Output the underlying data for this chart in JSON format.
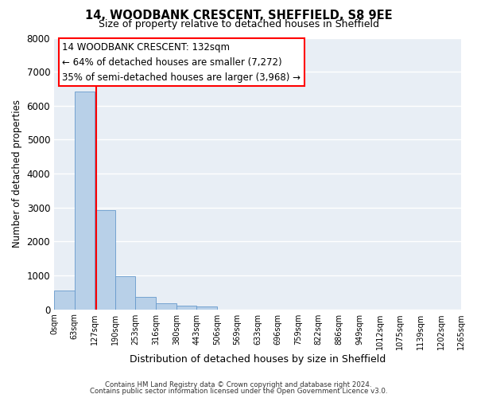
{
  "title": "14, WOODBANK CRESCENT, SHEFFIELD, S8 9EE",
  "subtitle": "Size of property relative to detached houses in Sheffield",
  "xlabel": "Distribution of detached houses by size in Sheffield",
  "ylabel": "Number of detached properties",
  "bar_values": [
    560,
    6420,
    2930,
    975,
    365,
    170,
    100,
    80,
    0,
    0,
    0,
    0,
    0,
    0,
    0,
    0,
    0,
    0,
    0
  ],
  "bin_edges": [
    0,
    63,
    127,
    190,
    253,
    316,
    380,
    443,
    506,
    569,
    633,
    696,
    759,
    822,
    886,
    949,
    1012,
    1075,
    1139,
    1265
  ],
  "tick_labels": [
    "0sqm",
    "63sqm",
    "127sqm",
    "190sqm",
    "253sqm",
    "316sqm",
    "380sqm",
    "443sqm",
    "506sqm",
    "569sqm",
    "633sqm",
    "696sqm",
    "759sqm",
    "822sqm",
    "886sqm",
    "949sqm",
    "1012sqm",
    "1075sqm",
    "1139sqm",
    "1202sqm",
    "1265sqm"
  ],
  "bar_color": "#b8d0e8",
  "bar_edge_color": "#6699cc",
  "vline_x": 132,
  "vline_color": "red",
  "ylim": [
    0,
    8000
  ],
  "yticks": [
    0,
    1000,
    2000,
    3000,
    4000,
    5000,
    6000,
    7000,
    8000
  ],
  "annotation_title": "14 WOODBANK CRESCENT: 132sqm",
  "annotation_line1": "← 64% of detached houses are smaller (7,272)",
  "annotation_line2": "35% of semi-detached houses are larger (3,968) →",
  "footer_line1": "Contains HM Land Registry data © Crown copyright and database right 2024.",
  "footer_line2": "Contains public sector information licensed under the Open Government Licence v3.0.",
  "background_color": "#e8eef5",
  "grid_color": "#ffffff",
  "fig_bg_color": "#ffffff"
}
